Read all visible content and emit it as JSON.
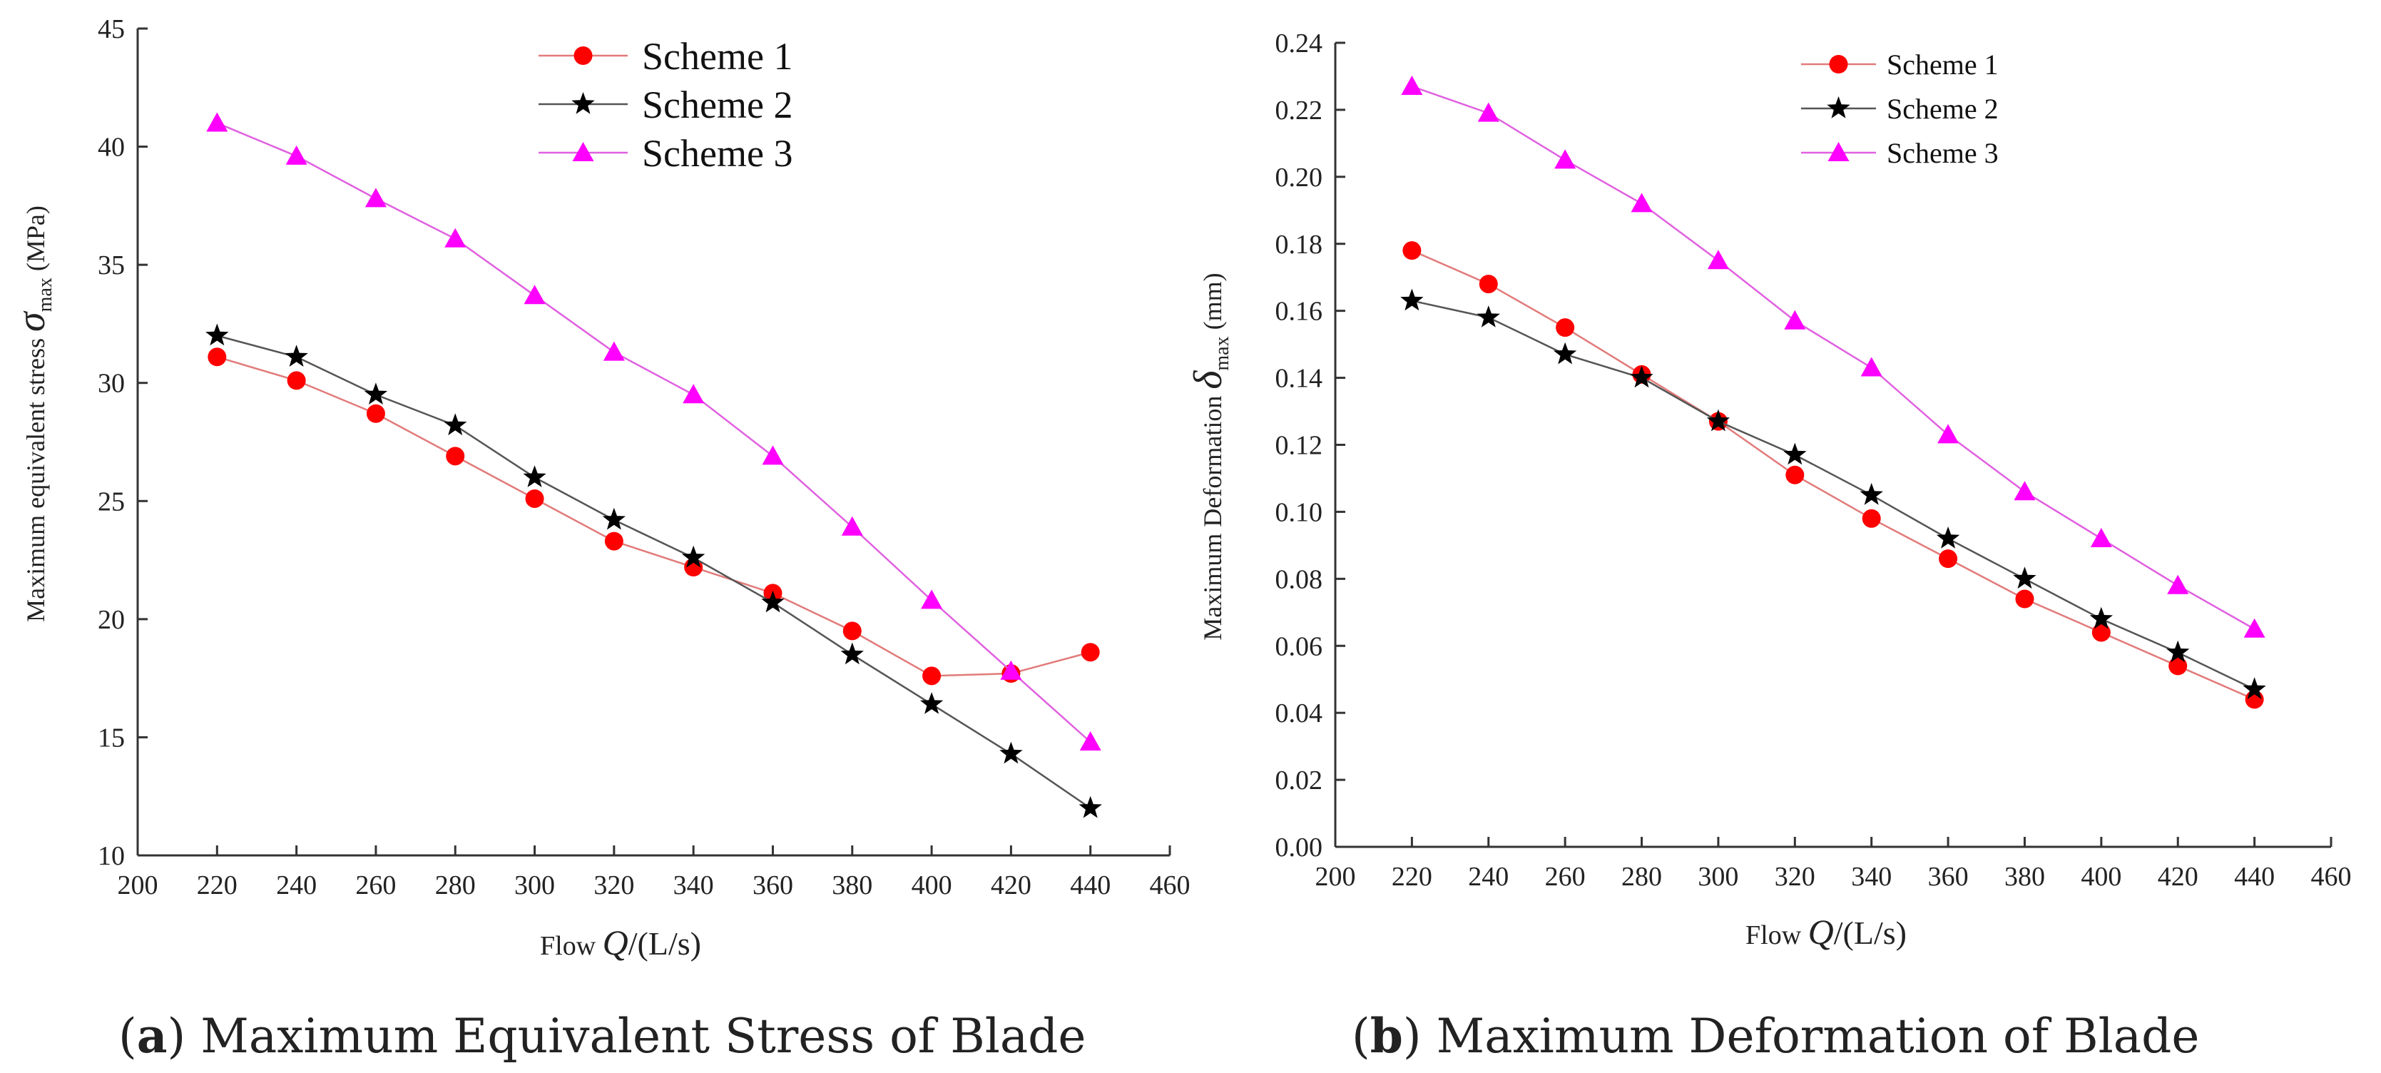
{
  "series_styles": [
    {
      "line_color": "#e27a7a",
      "marker_color": "#ff0000",
      "marker": "circle"
    },
    {
      "line_color": "#555555",
      "marker_color": "#000000",
      "marker": "star"
    },
    {
      "line_color": "#e060e0",
      "marker_color": "#ff00ff",
      "marker": "triangle"
    }
  ],
  "chart_data": [
    {
      "type": "line",
      "caption_label": "a",
      "caption_text": "Maximum Equivalent Stress of Blade",
      "xlabel_prefix": "Flow",
      "xlabel_var": "Q",
      "xlabel_unit": "/(L/s)",
      "ylabel_text": "Maximum equivalent stress",
      "ylabel_sym": "σ",
      "ylabel_sub": "max",
      "ylabel_unit": "(MPa)",
      "xlim": [
        200,
        460
      ],
      "ylim": [
        10,
        45
      ],
      "xticks": [
        "200",
        "220",
        "240",
        "260",
        "280",
        "300",
        "320",
        "340",
        "360",
        "380",
        "400",
        "420",
        "440",
        "460"
      ],
      "yticks": [
        "10",
        "15",
        "20",
        "25",
        "30",
        "35",
        "40",
        "45"
      ],
      "legend_position": "top-center",
      "x": [
        220,
        240,
        260,
        280,
        300,
        320,
        340,
        360,
        380,
        400,
        420,
        440
      ],
      "series": [
        {
          "name": "Scheme 1",
          "values": [
            31.1,
            30.1,
            28.7,
            26.9,
            25.1,
            23.3,
            22.2,
            21.1,
            19.5,
            17.6,
            17.7,
            18.6
          ]
        },
        {
          "name": "Scheme 2",
          "values": [
            32.0,
            31.1,
            29.5,
            28.2,
            26.0,
            24.2,
            22.6,
            20.7,
            18.5,
            16.4,
            14.3,
            12.0
          ]
        },
        {
          "name": "Scheme 3",
          "values": [
            41.0,
            39.6,
            37.8,
            36.1,
            33.7,
            31.3,
            29.5,
            26.9,
            23.9,
            20.8,
            17.8,
            14.8
          ]
        }
      ]
    },
    {
      "type": "line",
      "caption_label": "b",
      "caption_text": "Maximum Deformation of Blade",
      "xlabel_prefix": "Flow",
      "xlabel_var": "Q",
      "xlabel_unit": "/(L/s)",
      "ylabel_text": "Maximum Deformation",
      "ylabel_sym": "δ",
      "ylabel_sub": "max",
      "ylabel_unit": "(mm)",
      "xlim": [
        200,
        460
      ],
      "ylim": [
        0,
        0.24
      ],
      "xticks": [
        "200",
        "220",
        "240",
        "260",
        "280",
        "300",
        "320",
        "340",
        "360",
        "380",
        "400",
        "420",
        "440",
        "460"
      ],
      "yticks": [
        "0.00",
        "0.02",
        "0.04",
        "0.06",
        "0.08",
        "0.10",
        "0.12",
        "0.14",
        "0.16",
        "0.18",
        "0.20",
        "0.22",
        "0.24"
      ],
      "legend_position": "top-center",
      "x": [
        220,
        240,
        260,
        280,
        300,
        320,
        340,
        360,
        380,
        400,
        420,
        440
      ],
      "series": [
        {
          "name": "Scheme 1",
          "values": [
            0.178,
            0.168,
            0.155,
            0.141,
            0.127,
            0.111,
            0.098,
            0.086,
            0.074,
            0.064,
            0.054,
            0.044
          ]
        },
        {
          "name": "Scheme 2",
          "values": [
            0.163,
            0.158,
            0.147,
            0.14,
            0.127,
            0.117,
            0.105,
            0.092,
            0.08,
            0.068,
            0.058,
            0.047
          ]
        },
        {
          "name": "Scheme 3",
          "values": [
            0.227,
            0.219,
            0.205,
            0.192,
            0.175,
            0.157,
            0.143,
            0.123,
            0.106,
            0.092,
            0.078,
            0.065
          ]
        }
      ]
    }
  ]
}
